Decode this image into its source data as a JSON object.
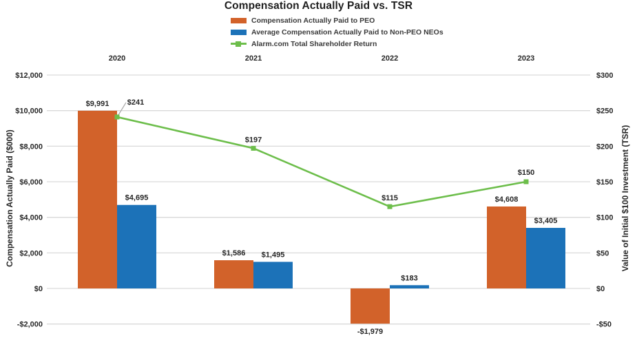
{
  "title": "Compensation Actually Paid vs. TSR",
  "legend": [
    {
      "label": "Compensation Actually Paid to PEO",
      "color": "#D2622A",
      "type": "bar"
    },
    {
      "label": "Average Compensation Actually Paid to Non-PEO NEOs",
      "color": "#1C72B8",
      "type": "bar"
    },
    {
      "label": "Alarm.com Total Shareholder Return",
      "color": "#6DBE4B",
      "type": "line"
    }
  ],
  "chart_data": {
    "type": "bar+line combo",
    "categories": [
      "2020",
      "2021",
      "2022",
      "2023"
    ],
    "series": [
      {
        "name": "Compensation Actually Paid to PEO",
        "type": "bar",
        "axis": "left",
        "color": "#D2622A",
        "values": [
          9991,
          1586,
          -1979,
          4608
        ],
        "labels": [
          "$9,991",
          "$1,586",
          "-$1,979",
          "$4,608"
        ]
      },
      {
        "name": "Average Compensation Actually Paid to Non-PEO NEOs",
        "type": "bar",
        "axis": "left",
        "color": "#1C72B8",
        "values": [
          4695,
          1495,
          183,
          3405
        ],
        "labels": [
          "$4,695",
          "$1,495",
          "$183",
          "$3,405"
        ]
      },
      {
        "name": "Alarm.com Total Shareholder Return",
        "type": "line",
        "axis": "right",
        "color": "#6DBE4B",
        "values": [
          241,
          197,
          115,
          150
        ],
        "labels": [
          "$241",
          "$197",
          "$115",
          "$150"
        ]
      }
    ],
    "left_axis": {
      "title": "Compensation Actually Paid ($000)",
      "min": -2000,
      "max": 12000,
      "step": 2000,
      "tick_labels": [
        "$12,000",
        "$10,000",
        "$8,000",
        "$6,000",
        "$4,000",
        "$2,000",
        "$0",
        "-$2,000"
      ]
    },
    "right_axis": {
      "title": "Value of Initial $100 Investment (TSR)",
      "min": -50,
      "max": 300,
      "step": 50,
      "tick_labels": [
        "$300",
        "$250",
        "$200",
        "$150",
        "$100",
        "$50",
        "$0",
        "-$50"
      ]
    },
    "grid": true,
    "legend_position": "top"
  },
  "colors": {
    "grid": "#D9D9D9",
    "text": "#262626",
    "leader": "#A6A6A6",
    "background": "#FFFFFF"
  }
}
